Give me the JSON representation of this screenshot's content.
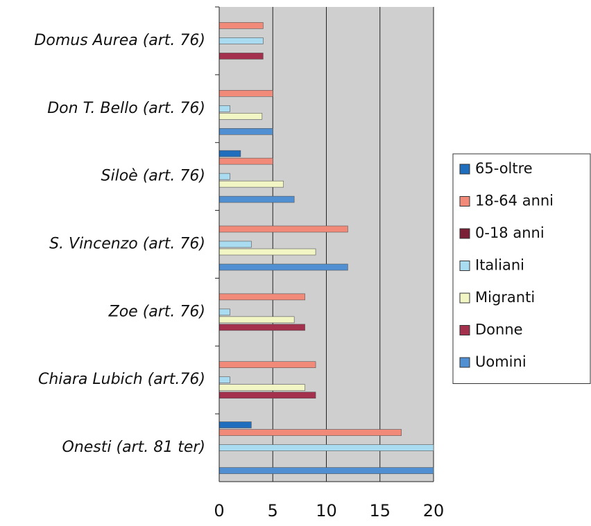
{
  "chart_data": {
    "type": "bar",
    "orientation": "horizontal",
    "categories": [
      "Onesti    (art. 81 ter)",
      "Chiara Lubich  (art.76)",
      "Zoe (art. 76)",
      "S. Vincenzo (art. 76)",
      "Siloè  (art. 76)",
      "Don T. Bello  (art. 76)",
      "Domus Aurea (art. 76)"
    ],
    "series": [
      {
        "name": "65-oltre",
        "color": "#1f6dbd",
        "values": [
          3,
          0,
          0,
          0,
          2,
          0,
          0
        ]
      },
      {
        "name": "18-64 anni",
        "color": "#f28a7a",
        "values": [
          17,
          9,
          8,
          12,
          5,
          5,
          4.1
        ]
      },
      {
        "name": "0-18 anni",
        "color": "#7a1f35",
        "values": [
          0,
          0,
          0,
          0,
          0,
          0,
          0
        ]
      },
      {
        "name": "Italiani",
        "color": "#a9dcf0",
        "values": [
          20,
          1,
          1,
          3,
          1,
          1,
          4.1
        ]
      },
      {
        "name": "Migranti",
        "color": "#f2f6c4",
        "values": [
          0,
          8,
          7,
          9,
          6,
          4,
          0
        ]
      },
      {
        "name": "Donne",
        "color": "#a3304c",
        "values": [
          0,
          9,
          8,
          0,
          0,
          0,
          4.1
        ]
      },
      {
        "name": "Uomini",
        "color": "#4f8fd2",
        "values": [
          20,
          0,
          0,
          12,
          7,
          5,
          0
        ]
      }
    ],
    "xlim": [
      0,
      20
    ],
    "xticks": [
      0,
      5,
      10,
      15,
      20
    ],
    "grid": true,
    "legend": "right"
  }
}
